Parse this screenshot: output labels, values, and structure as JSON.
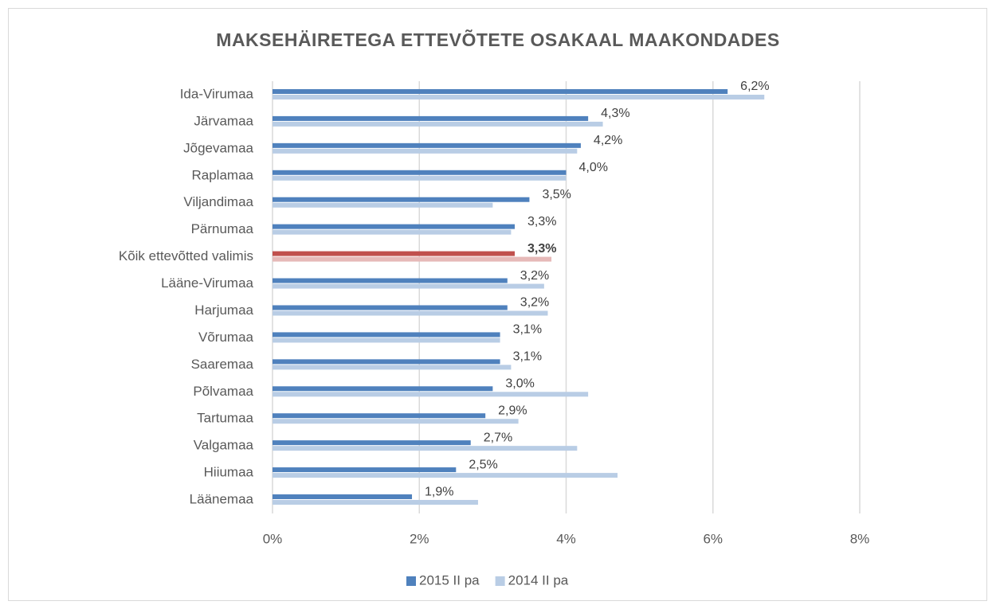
{
  "chart_data": {
    "type": "hbar",
    "title": "MAKSEHÄIRETEGA ETTEVÕTETE OSAKAAL MAAKONDADES",
    "categories": [
      "Ida-Virumaa",
      "Järvamaa",
      "Jõgevamaa",
      "Raplamaa",
      "Viljandimaa",
      "Pärnumaa",
      "Kõik ettevõtted valimis",
      "Lääne-Virumaa",
      "Harjumaa",
      "Võrumaa",
      "Saaremaa",
      "Põlvamaa",
      "Tartumaa",
      "Valgamaa",
      "Hiiumaa",
      "Läänemaa"
    ],
    "series": [
      {
        "name": "2015 II pa",
        "color": "#4f81bd",
        "colors": [
          "#4f81bd",
          "#4f81bd",
          "#4f81bd",
          "#4f81bd",
          "#4f81bd",
          "#4f81bd",
          "#c0504d",
          "#4f81bd",
          "#4f81bd",
          "#4f81bd",
          "#4f81bd",
          "#4f81bd",
          "#4f81bd",
          "#4f81bd",
          "#4f81bd",
          "#4f81bd"
        ],
        "values": [
          6.2,
          4.3,
          4.2,
          4.0,
          3.5,
          3.3,
          3.3,
          3.2,
          3.2,
          3.1,
          3.1,
          3.0,
          2.9,
          2.7,
          2.5,
          1.9
        ],
        "value_labels": [
          "6,2%",
          "4,3%",
          "4,2%",
          "4,0%",
          "3,5%",
          "3,3%",
          "3,3%",
          "3,2%",
          "3,2%",
          "3,1%",
          "3,1%",
          "3,0%",
          "2,9%",
          "2,7%",
          "2,5%",
          "1,9%"
        ]
      },
      {
        "name": "2014 II pa",
        "color": "#b9cde5",
        "colors": [
          "#b9cde5",
          "#b9cde5",
          "#b9cde5",
          "#b9cde5",
          "#b9cde5",
          "#b9cde5",
          "#e6b9b8",
          "#b9cde5",
          "#b9cde5",
          "#b9cde5",
          "#b9cde5",
          "#b9cde5",
          "#b9cde5",
          "#b9cde5",
          "#b9cde5",
          "#b9cde5"
        ],
        "values": [
          6.7,
          4.5,
          4.15,
          4.0,
          3.0,
          3.25,
          3.8,
          3.7,
          3.75,
          3.1,
          3.25,
          4.3,
          3.35,
          4.15,
          4.7,
          2.8
        ]
      }
    ],
    "xlim": [
      0,
      8
    ],
    "xticks": [
      {
        "value": 0,
        "label": "0%"
      },
      {
        "value": 2,
        "label": "2%"
      },
      {
        "value": 4,
        "label": "4%"
      },
      {
        "value": 6,
        "label": "6%"
      },
      {
        "value": 8,
        "label": "8%"
      }
    ],
    "grid": true,
    "legend": "bottom"
  }
}
